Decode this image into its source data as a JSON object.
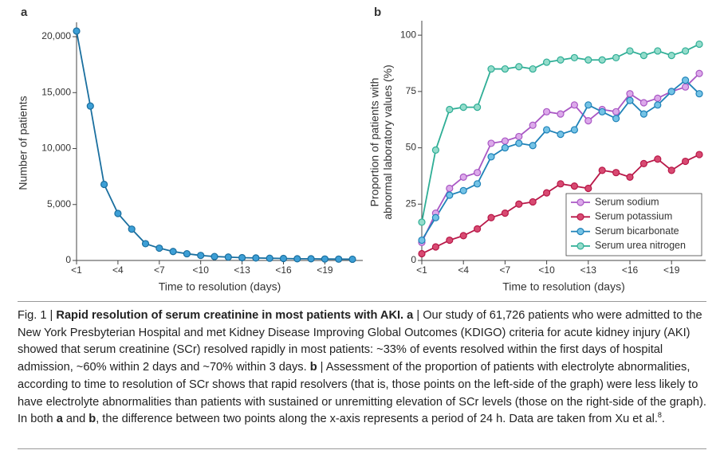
{
  "chart_data": [
    {
      "type": "line",
      "panel": "a",
      "categories": [
        "<1",
        null,
        null,
        "<4",
        null,
        null,
        "<7",
        null,
        null,
        "<10",
        null,
        null,
        "<13",
        null,
        null,
        "<16",
        null,
        null,
        "<19",
        null,
        null
      ],
      "values": [
        20500,
        13800,
        6800,
        4200,
        2800,
        1500,
        1100,
        800,
        600,
        450,
        350,
        300,
        250,
        220,
        200,
        180,
        150,
        150,
        130,
        120,
        110
      ],
      "color": "#1a6f9f",
      "marker_color": "#3d9fd6",
      "ylim": [
        0,
        21000
      ],
      "yticks": [
        0,
        {
          "value": 5000,
          "label": "5,000"
        },
        {
          "value": 10000,
          "label": "10,000"
        },
        {
          "value": 15000,
          "label": "15,000"
        },
        {
          "value": 20000,
          "label": "20,000"
        }
      ],
      "y_label": [
        "Number of patients"
      ],
      "x_label": "Time to resolution (days)"
    },
    {
      "type": "line",
      "panel": "b",
      "categories": [
        "<1",
        null,
        null,
        "<4",
        null,
        null,
        "<7",
        null,
        null,
        "<10",
        null,
        null,
        "<13",
        null,
        null,
        "<16",
        null,
        null,
        "<19",
        null,
        null
      ],
      "series": [
        {
          "name": "Serum sodium",
          "color": "#a957c4",
          "marker_color": "#dca9ea",
          "values": [
            8,
            21,
            32,
            37,
            39,
            52,
            53,
            55,
            60,
            66,
            65,
            69,
            62,
            67,
            66,
            74,
            70,
            72,
            75,
            77,
            83
          ]
        },
        {
          "name": "Serum potassium",
          "color": "#b81848",
          "marker_color": "#d84a72",
          "values": [
            3,
            6,
            9,
            11,
            14,
            19,
            21,
            25,
            26,
            30,
            34,
            33,
            32,
            40,
            39,
            37,
            43,
            45,
            40,
            44,
            47
          ]
        },
        {
          "name": "Serum bicarbonate",
          "color": "#1f82b8",
          "marker_color": "#74c3e6",
          "values": [
            9,
            19,
            29,
            31,
            34,
            46,
            50,
            52,
            51,
            58,
            56,
            58,
            69,
            66,
            63,
            71,
            65,
            69,
            75,
            80,
            74
          ]
        },
        {
          "name": "Serum urea nitrogen",
          "color": "#2fae96",
          "marker_color": "#94dccb",
          "values": [
            17,
            49,
            67,
            68,
            68,
            85,
            85,
            86,
            85,
            88,
            89,
            90,
            89,
            89,
            90,
            93,
            91,
            93,
            91,
            93,
            96
          ]
        }
      ],
      "ylim": [
        0,
        105
      ],
      "yticks": [
        0,
        25,
        50,
        75,
        100
      ],
      "y_label": [
        "Proportion of patients with",
        "abnormal laboratory values (%)"
      ],
      "x_label": "Time to resolution (days)",
      "legend": "lower right"
    }
  ],
  "caption": [
    {
      "text": "Fig. 1 | "
    },
    {
      "text": "Rapid resolution of serum creatinine in most patients with AKI.",
      "bold": true
    },
    {
      "text": " "
    },
    {
      "text": "a",
      "bold": true
    },
    {
      "text": " | Our study of 61,726 patients who were admitted to the New York Presbyterian Hospital and met Kidney Disease Improving Global Outcomes (KDIGO) criteria for acute kidney injury (AKI) showed that serum creatinine (SCr) resolved rapidly in most patients: ~33% of events resolved within the first days of hospital admission, ~60% within 2 days and ~70% within 3 days. "
    },
    {
      "text": "b",
      "bold": true
    },
    {
      "text": " | Assessment of the proportion of patients with electrolyte abnormalities, according to time to resolution of SCr shows that rapid resolvers (that is, those points on the left-side of the graph) were less likely to have electrolyte abnormalities than patients with sustained or unremitting elevation of SCr levels (those on the right-side of the graph). In both "
    },
    {
      "text": "a",
      "bold": true
    },
    {
      "text": " and "
    },
    {
      "text": "b",
      "bold": true
    },
    {
      "text": ", the difference between two points along the x-axis represents a period of 24 h. Data are taken from Xu et al."
    },
    {
      "text": "8",
      "sup": true
    },
    {
      "text": "."
    }
  ]
}
